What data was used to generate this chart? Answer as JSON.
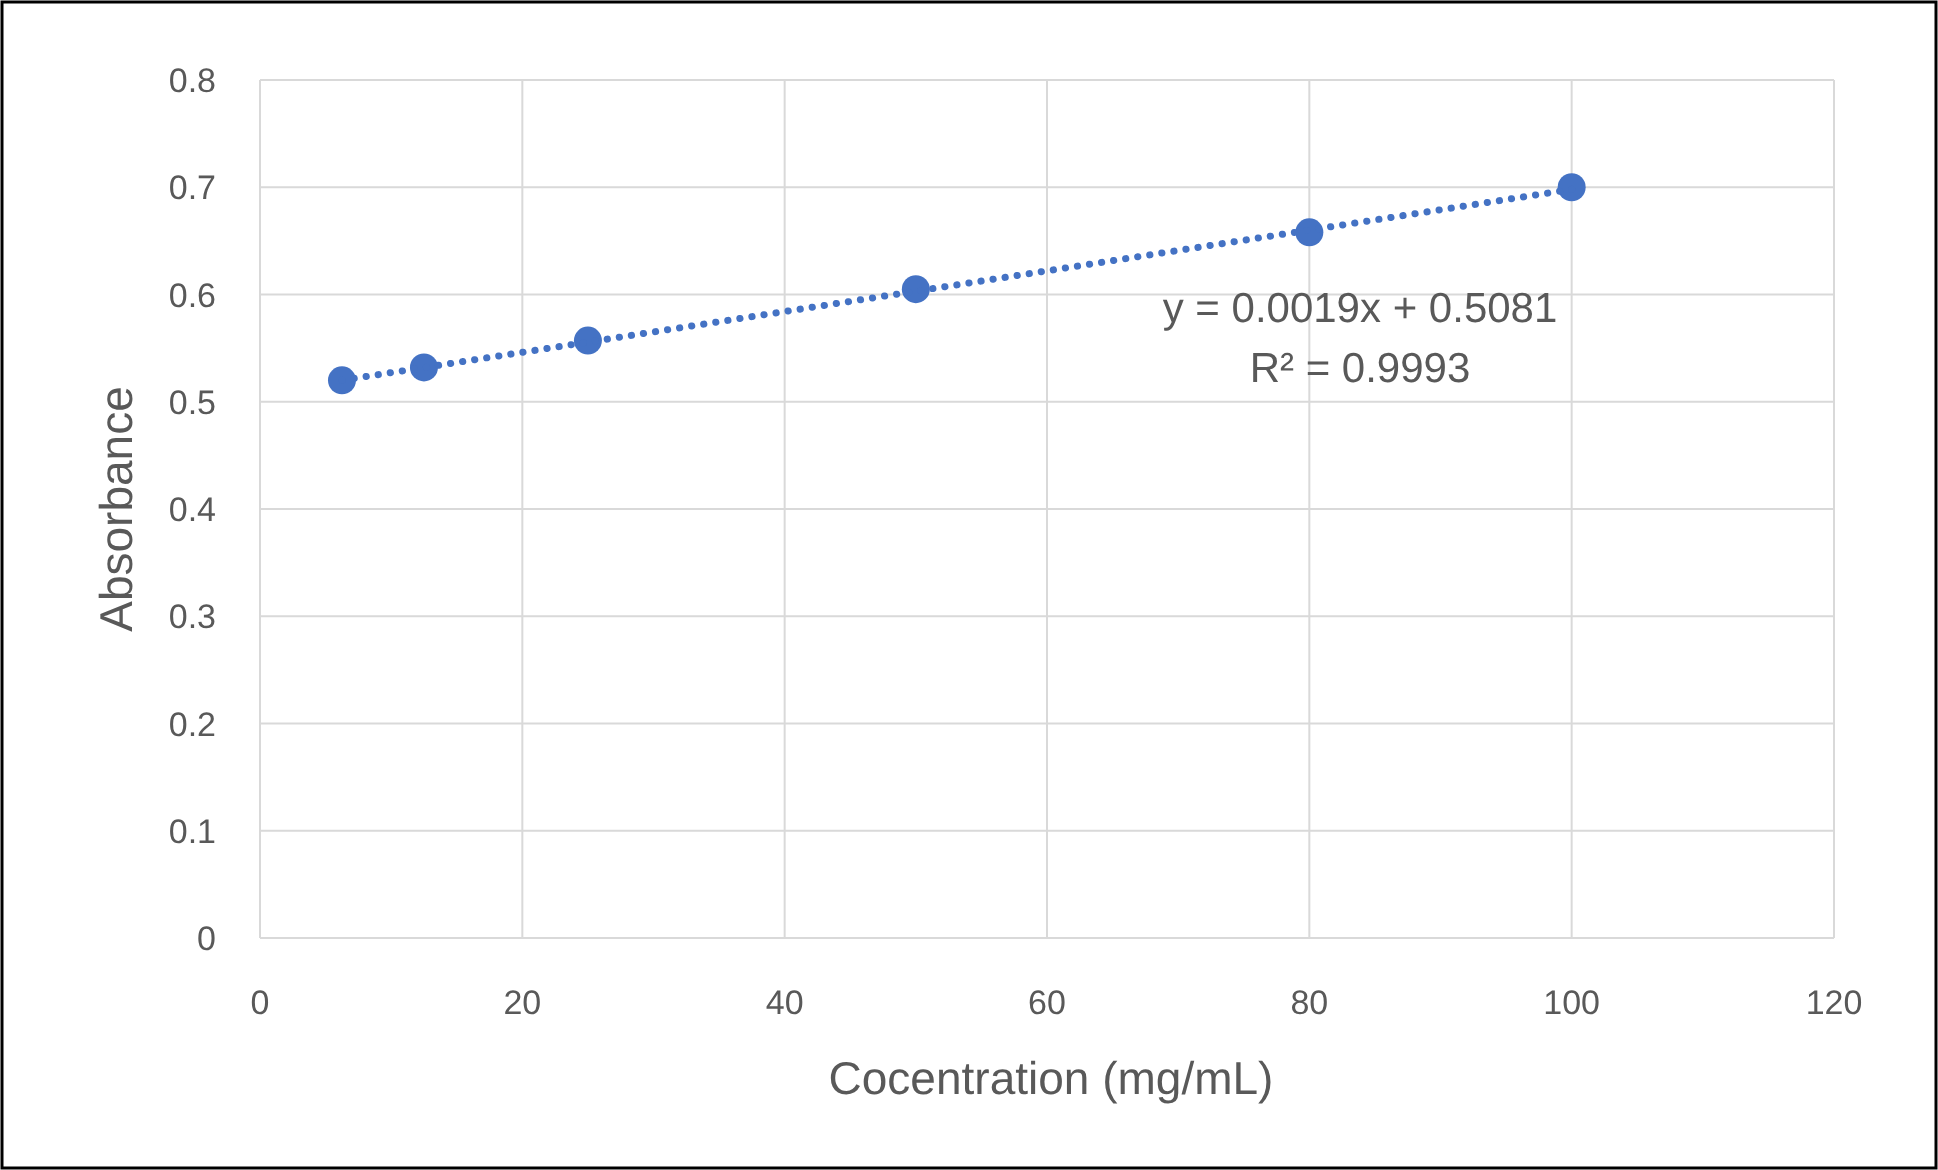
{
  "chart_data": {
    "type": "scatter",
    "xlabel": "Cocentration (mg/mL)",
    "ylabel": "Absorbance",
    "xlim": [
      0,
      120
    ],
    "xticks": [
      0,
      20,
      40,
      60,
      80,
      100,
      120
    ],
    "ylim": [
      0,
      0.8
    ],
    "yticks": [
      0,
      0.1,
      0.2,
      0.3,
      0.4,
      0.5,
      0.6,
      0.7,
      0.8
    ],
    "grid": true,
    "series": [
      {
        "color": "#4472c4",
        "marker": "circle",
        "x": [
          6.25,
          12.5,
          25,
          50,
          80,
          100
        ],
        "values": [
          0.52,
          0.532,
          0.557,
          0.605,
          0.658,
          0.7
        ]
      },
      {
        "type": "line",
        "color": "#4472c4",
        "marker": "none",
        "line_style": "dotted",
        "x": [
          6.25,
          100
        ],
        "values": [
          0.52,
          0.698
        ]
      }
    ],
    "annotations": [
      "y = 0.0019x + 0.5081",
      "R² = 0.9993"
    ]
  }
}
